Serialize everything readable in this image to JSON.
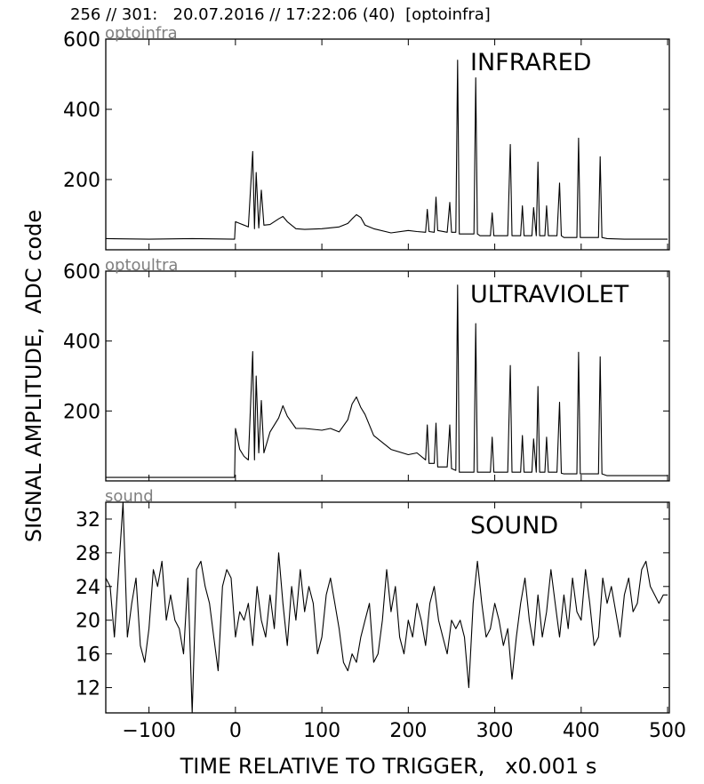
{
  "header": "256 // 301:   20.07.2016 // 17:22:06 (40)  [optoinfra]",
  "ylabel": "SIGNAL AMPLITUDE,  ADC code",
  "xlabel": "TIME RELATIVE TO TRIGGER,   x0.001 s",
  "chart_data": [
    {
      "type": "line",
      "channel": "optoinfra",
      "label": "INFRARED",
      "xlim": [
        -150,
        502
      ],
      "ylim": [
        0,
        600
      ],
      "yticks": [
        200,
        400,
        600
      ],
      "x": [
        -150,
        -100,
        -50,
        -1,
        0,
        5,
        10,
        15,
        20,
        22,
        24,
        27,
        30,
        33,
        40,
        50,
        55,
        60,
        70,
        80,
        100,
        120,
        130,
        135,
        140,
        145,
        150,
        160,
        180,
        200,
        210,
        220,
        222,
        224,
        230,
        232,
        234,
        245,
        248,
        250,
        255,
        257,
        259,
        262,
        276,
        278,
        280,
        283,
        295,
        297,
        299,
        310,
        315,
        318,
        320,
        322,
        330,
        332,
        334,
        343,
        345,
        348,
        350,
        352,
        358,
        360,
        362,
        372,
        375,
        377,
        380,
        395,
        397,
        399,
        405,
        420,
        422,
        424,
        430,
        450,
        480,
        500
      ],
      "y": [
        32,
        30,
        32,
        30,
        80,
        75,
        70,
        65,
        280,
        60,
        220,
        62,
        170,
        70,
        72,
        88,
        95,
        80,
        60,
        58,
        60,
        65,
        75,
        88,
        100,
        92,
        70,
        60,
        48,
        55,
        52,
        50,
        115,
        52,
        50,
        150,
        55,
        50,
        135,
        50,
        50,
        540,
        45,
        45,
        45,
        490,
        45,
        40,
        40,
        105,
        40,
        40,
        40,
        300,
        40,
        40,
        40,
        125,
        40,
        40,
        120,
        40,
        250,
        40,
        40,
        125,
        40,
        40,
        190,
        40,
        35,
        35,
        318,
        35,
        35,
        35,
        265,
        35,
        32,
        30,
        30,
        30
      ]
    },
    {
      "type": "line",
      "channel": "optoultra",
      "label": "ULTRAVIOLET",
      "xlim": [
        -150,
        502
      ],
      "ylim": [
        0,
        600
      ],
      "yticks": [
        200,
        400,
        600
      ],
      "x": [
        -150,
        -100,
        -50,
        -1,
        0,
        5,
        10,
        15,
        20,
        22,
        24,
        27,
        30,
        33,
        40,
        50,
        55,
        60,
        70,
        80,
        100,
        110,
        120,
        130,
        135,
        140,
        145,
        150,
        160,
        180,
        200,
        210,
        220,
        222,
        224,
        230,
        232,
        234,
        245,
        248,
        250,
        255,
        257,
        259,
        262,
        276,
        278,
        280,
        283,
        295,
        297,
        299,
        310,
        315,
        318,
        320,
        322,
        330,
        332,
        334,
        343,
        345,
        348,
        350,
        352,
        358,
        360,
        362,
        372,
        375,
        377,
        380,
        395,
        397,
        399,
        405,
        420,
        422,
        424,
        430,
        450,
        480,
        500
      ],
      "y": [
        10,
        10,
        10,
        10,
        150,
        90,
        70,
        60,
        370,
        60,
        300,
        80,
        230,
        80,
        140,
        180,
        215,
        185,
        150,
        150,
        145,
        150,
        140,
        175,
        220,
        240,
        210,
        190,
        130,
        90,
        75,
        80,
        60,
        160,
        50,
        50,
        165,
        40,
        40,
        160,
        35,
        30,
        560,
        25,
        25,
        25,
        450,
        25,
        25,
        25,
        125,
        25,
        25,
        25,
        330,
        25,
        25,
        25,
        130,
        25,
        25,
        120,
        25,
        270,
        25,
        25,
        125,
        25,
        25,
        225,
        22,
        20,
        20,
        368,
        20,
        20,
        20,
        355,
        20,
        15,
        15,
        15,
        15
      ]
    },
    {
      "type": "line",
      "channel": "sound",
      "label": "SOUND",
      "xlim": [
        -150,
        502
      ],
      "ylim": [
        9,
        34
      ],
      "yticks": [
        12,
        16,
        20,
        24,
        28,
        32
      ],
      "x": [
        -150,
        -145,
        -140,
        -135,
        -130,
        -125,
        -120,
        -115,
        -110,
        -105,
        -100,
        -95,
        -90,
        -85,
        -80,
        -75,
        -70,
        -65,
        -60,
        -55,
        -50,
        -45,
        -40,
        -35,
        -30,
        -25,
        -20,
        -15,
        -10,
        -5,
        0,
        5,
        10,
        15,
        20,
        25,
        30,
        35,
        40,
        45,
        50,
        55,
        60,
        65,
        70,
        75,
        80,
        85,
        90,
        95,
        100,
        105,
        110,
        115,
        120,
        125,
        130,
        135,
        140,
        145,
        150,
        155,
        160,
        165,
        170,
        175,
        180,
        185,
        190,
        195,
        200,
        205,
        210,
        215,
        220,
        225,
        230,
        235,
        240,
        245,
        250,
        255,
        260,
        265,
        270,
        275,
        280,
        285,
        290,
        295,
        300,
        305,
        310,
        315,
        320,
        325,
        330,
        335,
        340,
        345,
        350,
        355,
        360,
        365,
        370,
        375,
        380,
        385,
        390,
        395,
        400,
        405,
        410,
        415,
        420,
        425,
        430,
        435,
        440,
        445,
        450,
        455,
        460,
        465,
        470,
        475,
        480,
        485,
        490,
        495,
        500
      ],
      "y": [
        25,
        24,
        18,
        26,
        34,
        18,
        22,
        25,
        17,
        15,
        19,
        26,
        24,
        27,
        20,
        23,
        20,
        19,
        16,
        25,
        9,
        26,
        27,
        24,
        22,
        18,
        14,
        24,
        26,
        25,
        18,
        21,
        20,
        22,
        17,
        24,
        20,
        18,
        23,
        19,
        28,
        22,
        17,
        24,
        20,
        26,
        21,
        24,
        22,
        16,
        18,
        23,
        25,
        22,
        19,
        15,
        14,
        16,
        15,
        18,
        20,
        22,
        15,
        16,
        20,
        26,
        21,
        24,
        18,
        16,
        20,
        18,
        22,
        20,
        17,
        22,
        24,
        20,
        18,
        16,
        20,
        19,
        20,
        18,
        12,
        22,
        27,
        22,
        18,
        19,
        22,
        20,
        17,
        19,
        13,
        18,
        22,
        25,
        20,
        17,
        23,
        18,
        21,
        26,
        22,
        18,
        23,
        19,
        25,
        21,
        20,
        26,
        22,
        17,
        18,
        25,
        22,
        24,
        21,
        18,
        23,
        25,
        21,
        22,
        26,
        27,
        24,
        23,
        22,
        23,
        23
      ]
    }
  ]
}
